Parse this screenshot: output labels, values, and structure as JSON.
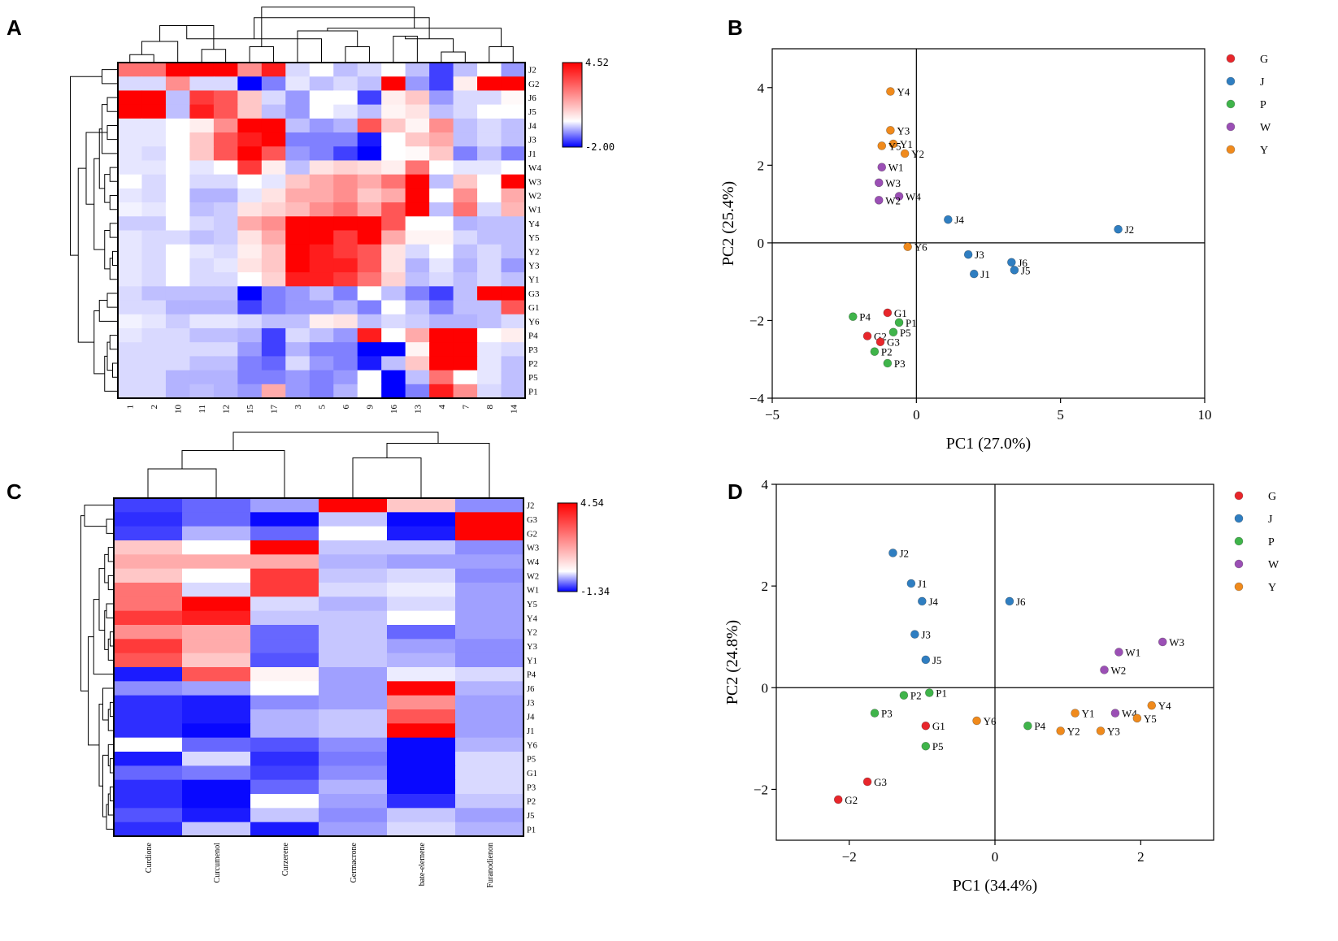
{
  "panels": {
    "A": {
      "letter": "A",
      "heatmap": {
        "columns": [
          "1",
          "2",
          "10",
          "11",
          "12",
          "15",
          "17",
          "3",
          "5",
          "6",
          "9",
          "16",
          "13",
          "4",
          "7",
          "8",
          "14"
        ],
        "rows": [
          "J2",
          "G2",
          "J6",
          "J5",
          "J4",
          "J3",
          "J1",
          "W4",
          "W3",
          "W2",
          "W1",
          "Y4",
          "Y5",
          "Y2",
          "Y3",
          "Y1",
          "G3",
          "G1",
          "Y6",
          "P4",
          "P3",
          "P2",
          "P5",
          "P1"
        ],
        "values": [
          [
            2.5,
            2.5,
            4.5,
            4.5,
            4.5,
            2,
            4,
            -0.3,
            0,
            -0.5,
            -0.3,
            0,
            -0.5,
            -1.5,
            -0.5,
            0,
            -0.8
          ],
          [
            -0.3,
            -0.3,
            2,
            -0.3,
            -0.3,
            -2,
            -1,
            -0.2,
            -0.5,
            -0.3,
            -0.5,
            4.5,
            -0.8,
            -1.5,
            0.3,
            4.5,
            4.5
          ],
          [
            4.5,
            4.5,
            -0.5,
            3.5,
            3,
            1,
            -0.3,
            -0.8,
            0,
            0,
            -1.5,
            0.3,
            1,
            -0.8,
            -0.3,
            -0.3,
            0.1
          ],
          [
            4.5,
            4.5,
            -0.5,
            4,
            3,
            1,
            -0.5,
            -0.8,
            0,
            -0.2,
            -0.5,
            0.2,
            0.5,
            -0.5,
            -0.3,
            0,
            0
          ],
          [
            -0.2,
            -0.2,
            0,
            0.3,
            2,
            4.5,
            4.5,
            -0.5,
            -0.8,
            -0.6,
            3,
            1,
            0.2,
            2,
            -0.5,
            -0.3,
            -0.5
          ],
          [
            -0.2,
            -0.2,
            0,
            1,
            3,
            4,
            4.5,
            -1,
            -1,
            -1,
            -1.8,
            0,
            1,
            1.5,
            -0.5,
            -0.3,
            -0.5
          ],
          [
            -0.2,
            -0.3,
            0,
            1,
            3,
            4.5,
            3,
            -0.8,
            -1,
            -1.5,
            -2,
            0,
            0.1,
            1,
            -1,
            -0.5,
            -1
          ],
          [
            -0.2,
            -0.2,
            0,
            -0.2,
            0,
            3.5,
            0.3,
            -0.5,
            0.5,
            0.8,
            0.6,
            0.3,
            2.5,
            0,
            -0.2,
            -0.2,
            0
          ],
          [
            0,
            -0.3,
            0,
            -0.3,
            -0.3,
            0,
            -0.2,
            1,
            1.5,
            2,
            1.5,
            2.5,
            4.5,
            -0.5,
            1,
            0,
            4.5
          ],
          [
            -0.2,
            -0.3,
            0,
            -0.6,
            -0.6,
            -0.2,
            0.5,
            1.5,
            1.5,
            2,
            1,
            1.5,
            4.5,
            0,
            2,
            0,
            1.5
          ],
          [
            -0.1,
            -0.2,
            0,
            -0.5,
            -0.4,
            0.5,
            0.8,
            1.2,
            2,
            2.5,
            1.5,
            3,
            4.5,
            -0.5,
            2.5,
            -0.3,
            1.3
          ],
          [
            -0.4,
            -0.4,
            0,
            -0.3,
            -0.4,
            1.5,
            2,
            4.5,
            4.5,
            4.5,
            4.5,
            3,
            0,
            0,
            -0.6,
            -0.5,
            -0.5
          ],
          [
            -0.2,
            -0.3,
            -0.3,
            -0.5,
            -0.4,
            0.5,
            1.5,
            4.5,
            4.5,
            3.5,
            4.5,
            1.5,
            0.2,
            0.2,
            -0.3,
            -0.5,
            -0.5
          ],
          [
            -0.2,
            -0.3,
            0,
            -0.2,
            -0.3,
            0.3,
            1,
            4.5,
            4,
            3.5,
            3,
            0.5,
            -0.3,
            0,
            -0.5,
            -0.3,
            -0.5
          ],
          [
            -0.2,
            -0.3,
            0,
            -0.3,
            -0.2,
            0.5,
            1,
            4.5,
            4,
            4,
            3,
            0.5,
            -0.6,
            -0.2,
            -0.6,
            -0.3,
            -0.8
          ],
          [
            -0.2,
            -0.3,
            0,
            -0.3,
            -0.3,
            0,
            0.8,
            4,
            4,
            3.5,
            2.5,
            0.8,
            -0.5,
            -0.3,
            -0.5,
            -0.3,
            -0.5
          ],
          [
            -0.3,
            -0.5,
            -0.5,
            -0.5,
            -0.5,
            -2,
            -1,
            -0.8,
            -0.5,
            -1,
            0,
            -0.5,
            -1,
            -1.5,
            -0.5,
            4.5,
            4.5
          ],
          [
            -0.3,
            -0.3,
            -0.6,
            -0.6,
            -0.6,
            -1.5,
            -1,
            -0.8,
            -0.8,
            -0.6,
            -1,
            0,
            -0.5,
            -1,
            -0.5,
            -0.5,
            3
          ],
          [
            -0.1,
            -0.2,
            -0.4,
            -0.2,
            -0.2,
            -0.3,
            -0.5,
            -0.5,
            0.3,
            0.5,
            -0.5,
            -0.3,
            -0.4,
            -0.6,
            -0.6,
            -0.5,
            -0.3
          ],
          [
            -0.2,
            -0.3,
            -0.3,
            -0.5,
            -0.5,
            -0.6,
            -1.5,
            -0.3,
            -0.5,
            -0.8,
            4,
            0,
            1.5,
            4.5,
            4.5,
            0,
            0.3
          ],
          [
            -0.3,
            -0.3,
            -0.3,
            -0.3,
            -0.3,
            -0.8,
            -1.5,
            -0.6,
            -1,
            -1,
            -2,
            -2,
            0.2,
            4.5,
            4.5,
            -0.2,
            -0.3
          ],
          [
            -0.3,
            -0.3,
            -0.3,
            -0.5,
            -0.5,
            -1,
            -1.2,
            -0.3,
            -0.8,
            -1,
            -1.8,
            -0.5,
            1,
            4.5,
            4.5,
            -0.2,
            -0.5
          ],
          [
            -0.3,
            -0.3,
            -0.6,
            -0.6,
            -0.6,
            -1,
            -1,
            -0.8,
            -1,
            -0.8,
            0,
            -2,
            -0.5,
            2.5,
            0,
            -0.2,
            -0.5
          ],
          [
            -0.3,
            -0.3,
            -0.6,
            -0.5,
            -0.6,
            -0.8,
            1.5,
            -0.8,
            -1,
            -0.6,
            0,
            -2,
            -1,
            4,
            2,
            -0.3,
            -0.5
          ]
        ],
        "scale_max_label": "4.52",
        "scale_min_label": "-2.00",
        "vmin": -2.0,
        "vmax": 4.52
      }
    },
    "B": {
      "letter": "B",
      "chart_data": {
        "type": "scatter",
        "title": "",
        "xlabel": "PC1 (27.0%)",
        "ylabel": "PC2 (25.4%)",
        "xlim": [
          -5,
          10
        ],
        "ylim": [
          -4,
          5
        ],
        "xticks": [
          -5,
          0,
          5,
          10
        ],
        "yticks": [
          -4,
          -2,
          0,
          2,
          4
        ],
        "legend": [
          "G",
          "J",
          "P",
          "W",
          "Y"
        ],
        "points": [
          {
            "label": "Y4",
            "group": "Y",
            "x": -0.9,
            "y": 3.9
          },
          {
            "label": "Y3",
            "group": "Y",
            "x": -0.9,
            "y": 2.9
          },
          {
            "label": "Y1",
            "group": "Y",
            "x": -0.8,
            "y": 2.55
          },
          {
            "label": "Y5",
            "group": "Y",
            "x": -1.2,
            "y": 2.5
          },
          {
            "label": "Y2",
            "group": "Y",
            "x": -0.4,
            "y": 2.3
          },
          {
            "label": "W1",
            "group": "W",
            "x": -1.2,
            "y": 1.95
          },
          {
            "label": "W3",
            "group": "W",
            "x": -1.3,
            "y": 1.55
          },
          {
            "label": "W4",
            "group": "W",
            "x": -0.6,
            "y": 1.2
          },
          {
            "label": "W2",
            "group": "W",
            "x": -1.3,
            "y": 1.1
          },
          {
            "label": "J4",
            "group": "J",
            "x": 1.1,
            "y": 0.6
          },
          {
            "label": "J2",
            "group": "J",
            "x": 7.0,
            "y": 0.35
          },
          {
            "label": "Y6",
            "group": "Y",
            "x": -0.3,
            "y": -0.1
          },
          {
            "label": "J3",
            "group": "J",
            "x": 1.8,
            "y": -0.3
          },
          {
            "label": "J6",
            "group": "J",
            "x": 3.3,
            "y": -0.5
          },
          {
            "label": "J5",
            "group": "J",
            "x": 3.4,
            "y": -0.7
          },
          {
            "label": "J1",
            "group": "J",
            "x": 2.0,
            "y": -0.8
          },
          {
            "label": "P4",
            "group": "P",
            "x": -2.2,
            "y": -1.9
          },
          {
            "label": "G1",
            "group": "G",
            "x": -1.0,
            "y": -1.8
          },
          {
            "label": "P1",
            "group": "P",
            "x": -0.6,
            "y": -2.05
          },
          {
            "label": "P5",
            "group": "P",
            "x": -0.8,
            "y": -2.3
          },
          {
            "label": "G2",
            "group": "G",
            "x": -1.7,
            "y": -2.4
          },
          {
            "label": "G3",
            "group": "G",
            "x": -1.25,
            "y": -2.55
          },
          {
            "label": "P2",
            "group": "P",
            "x": -1.45,
            "y": -2.8
          },
          {
            "label": "P3",
            "group": "P",
            "x": -1.0,
            "y": -3.1
          }
        ]
      }
    },
    "C": {
      "letter": "C",
      "heatmap": {
        "columns": [
          "Curdione",
          "Curcumenol",
          "Curzerene",
          "Germacrone",
          "bate-elemene",
          "Furanodienon"
        ],
        "rows": [
          "J2",
          "G3",
          "G2",
          "W3",
          "W4",
          "W2",
          "W1",
          "Y5",
          "Y4",
          "Y2",
          "Y3",
          "Y1",
          "P4",
          "J6",
          "J3",
          "J4",
          "J1",
          "Y6",
          "P5",
          "G1",
          "P3",
          "P2",
          "J5",
          "P1"
        ],
        "values": [
          [
            -1,
            -0.8,
            -0.5,
            4.5,
            1,
            -0.6
          ],
          [
            -1.1,
            -0.8,
            -1.3,
            -0.3,
            -1.3,
            4.5
          ],
          [
            -1,
            -0.4,
            -0.8,
            0,
            -1.2,
            4.5
          ],
          [
            1,
            0,
            4.5,
            -0.3,
            -0.3,
            -0.6
          ],
          [
            1.5,
            1.5,
            1.5,
            -0.4,
            -0.5,
            -0.5
          ],
          [
            1,
            0,
            3.5,
            -0.3,
            -0.2,
            -0.6
          ],
          [
            2.5,
            -0.2,
            3.5,
            -0.2,
            -0.1,
            -0.5
          ],
          [
            2.5,
            4.5,
            -0.2,
            -0.4,
            -0.2,
            -0.5
          ],
          [
            3.5,
            4,
            -0.3,
            -0.3,
            0,
            -0.5
          ],
          [
            2,
            1.5,
            -0.8,
            -0.3,
            -0.8,
            -0.5
          ],
          [
            3.5,
            1.5,
            -0.8,
            -0.3,
            -0.5,
            -0.6
          ],
          [
            3,
            1,
            -0.9,
            -0.3,
            -0.4,
            -0.6
          ],
          [
            -1.2,
            3,
            0.2,
            -0.5,
            -0.1,
            -0.2
          ],
          [
            -0.6,
            -0.5,
            0,
            -0.5,
            4.5,
            -0.4
          ],
          [
            -1.1,
            -1.2,
            -0.6,
            -0.5,
            2,
            -0.5
          ],
          [
            -1.1,
            -1.2,
            -0.4,
            -0.3,
            3,
            -0.5
          ],
          [
            -1.1,
            -1.3,
            -0.4,
            -0.3,
            4.5,
            -0.5
          ],
          [
            0,
            -0.8,
            -0.9,
            -0.6,
            -1.3,
            -0.4
          ],
          [
            -1.2,
            -0.2,
            -1.1,
            -0.7,
            -1.3,
            -0.2
          ],
          [
            -0.8,
            -0.7,
            -1,
            -0.6,
            -1.3,
            -0.2
          ],
          [
            -1.1,
            -1.3,
            -0.8,
            -0.4,
            -1.3,
            -0.2
          ],
          [
            -1.1,
            -1.3,
            0,
            -0.5,
            -1.1,
            -0.3
          ],
          [
            -0.9,
            -1.2,
            -0.3,
            -0.6,
            -0.3,
            -0.5
          ],
          [
            -1.1,
            -0.3,
            -1.2,
            -0.5,
            -0.2,
            -0.4
          ]
        ],
        "scale_max_label": "4.54",
        "scale_min_label": "-1.34",
        "vmin": -1.34,
        "vmax": 4.54
      }
    },
    "D": {
      "letter": "D",
      "chart_data": {
        "type": "scatter",
        "title": "",
        "xlabel": "PC1 (34.4%)",
        "ylabel": "PC2 (24.8%)",
        "xlim": [
          -3,
          3
        ],
        "ylim": [
          -3,
          4
        ],
        "xticks": [
          -2,
          0,
          2
        ],
        "yticks": [
          -2,
          0,
          2,
          4
        ],
        "legend": [
          "G",
          "J",
          "P",
          "W",
          "Y"
        ],
        "points": [
          {
            "label": "J2",
            "group": "J",
            "x": -1.4,
            "y": 2.65
          },
          {
            "label": "J1",
            "group": "J",
            "x": -1.15,
            "y": 2.05
          },
          {
            "label": "J4",
            "group": "J",
            "x": -1.0,
            "y": 1.7
          },
          {
            "label": "J6",
            "group": "J",
            "x": 0.2,
            "y": 1.7
          },
          {
            "label": "J3",
            "group": "J",
            "x": -1.1,
            "y": 1.05
          },
          {
            "label": "W3",
            "group": "W",
            "x": 2.3,
            "y": 0.9
          },
          {
            "label": "W1",
            "group": "W",
            "x": 1.7,
            "y": 0.7
          },
          {
            "label": "J5",
            "group": "J",
            "x": -0.95,
            "y": 0.55
          },
          {
            "label": "W2",
            "group": "W",
            "x": 1.5,
            "y": 0.35
          },
          {
            "label": "P1",
            "group": "P",
            "x": -0.9,
            "y": -0.1
          },
          {
            "label": "P2",
            "group": "P",
            "x": -1.25,
            "y": -0.15
          },
          {
            "label": "Y4",
            "group": "Y",
            "x": 2.15,
            "y": -0.35
          },
          {
            "label": "Y1",
            "group": "Y",
            "x": 1.1,
            "y": -0.5
          },
          {
            "label": "W4",
            "group": "W",
            "x": 1.65,
            "y": -0.5
          },
          {
            "label": "P3",
            "group": "P",
            "x": -1.65,
            "y": -0.5
          },
          {
            "label": "Y5",
            "group": "Y",
            "x": 1.95,
            "y": -0.6
          },
          {
            "label": "Y6",
            "group": "Y",
            "x": -0.25,
            "y": -0.65
          },
          {
            "label": "G1",
            "group": "G",
            "x": -0.95,
            "y": -0.75
          },
          {
            "label": "P4",
            "group": "P",
            "x": 0.45,
            "y": -0.75
          },
          {
            "label": "Y3",
            "group": "Y",
            "x": 1.45,
            "y": -0.85
          },
          {
            "label": "Y2",
            "group": "Y",
            "x": 0.9,
            "y": -0.85
          },
          {
            "label": "P5",
            "group": "P",
            "x": -0.95,
            "y": -1.15
          },
          {
            "label": "G3",
            "group": "G",
            "x": -1.75,
            "y": -1.85
          },
          {
            "label": "G2",
            "group": "G",
            "x": -2.15,
            "y": -2.2
          }
        ]
      }
    }
  },
  "group_colors": {
    "G": "#e8262b",
    "J": "#2f7ec1",
    "P": "#3fb44a",
    "W": "#9b4fb5",
    "Y": "#f08a1c"
  },
  "heatmap_colors": {
    "low": "#0000ff",
    "mid": "#ffffff",
    "high": "#ff0000"
  }
}
